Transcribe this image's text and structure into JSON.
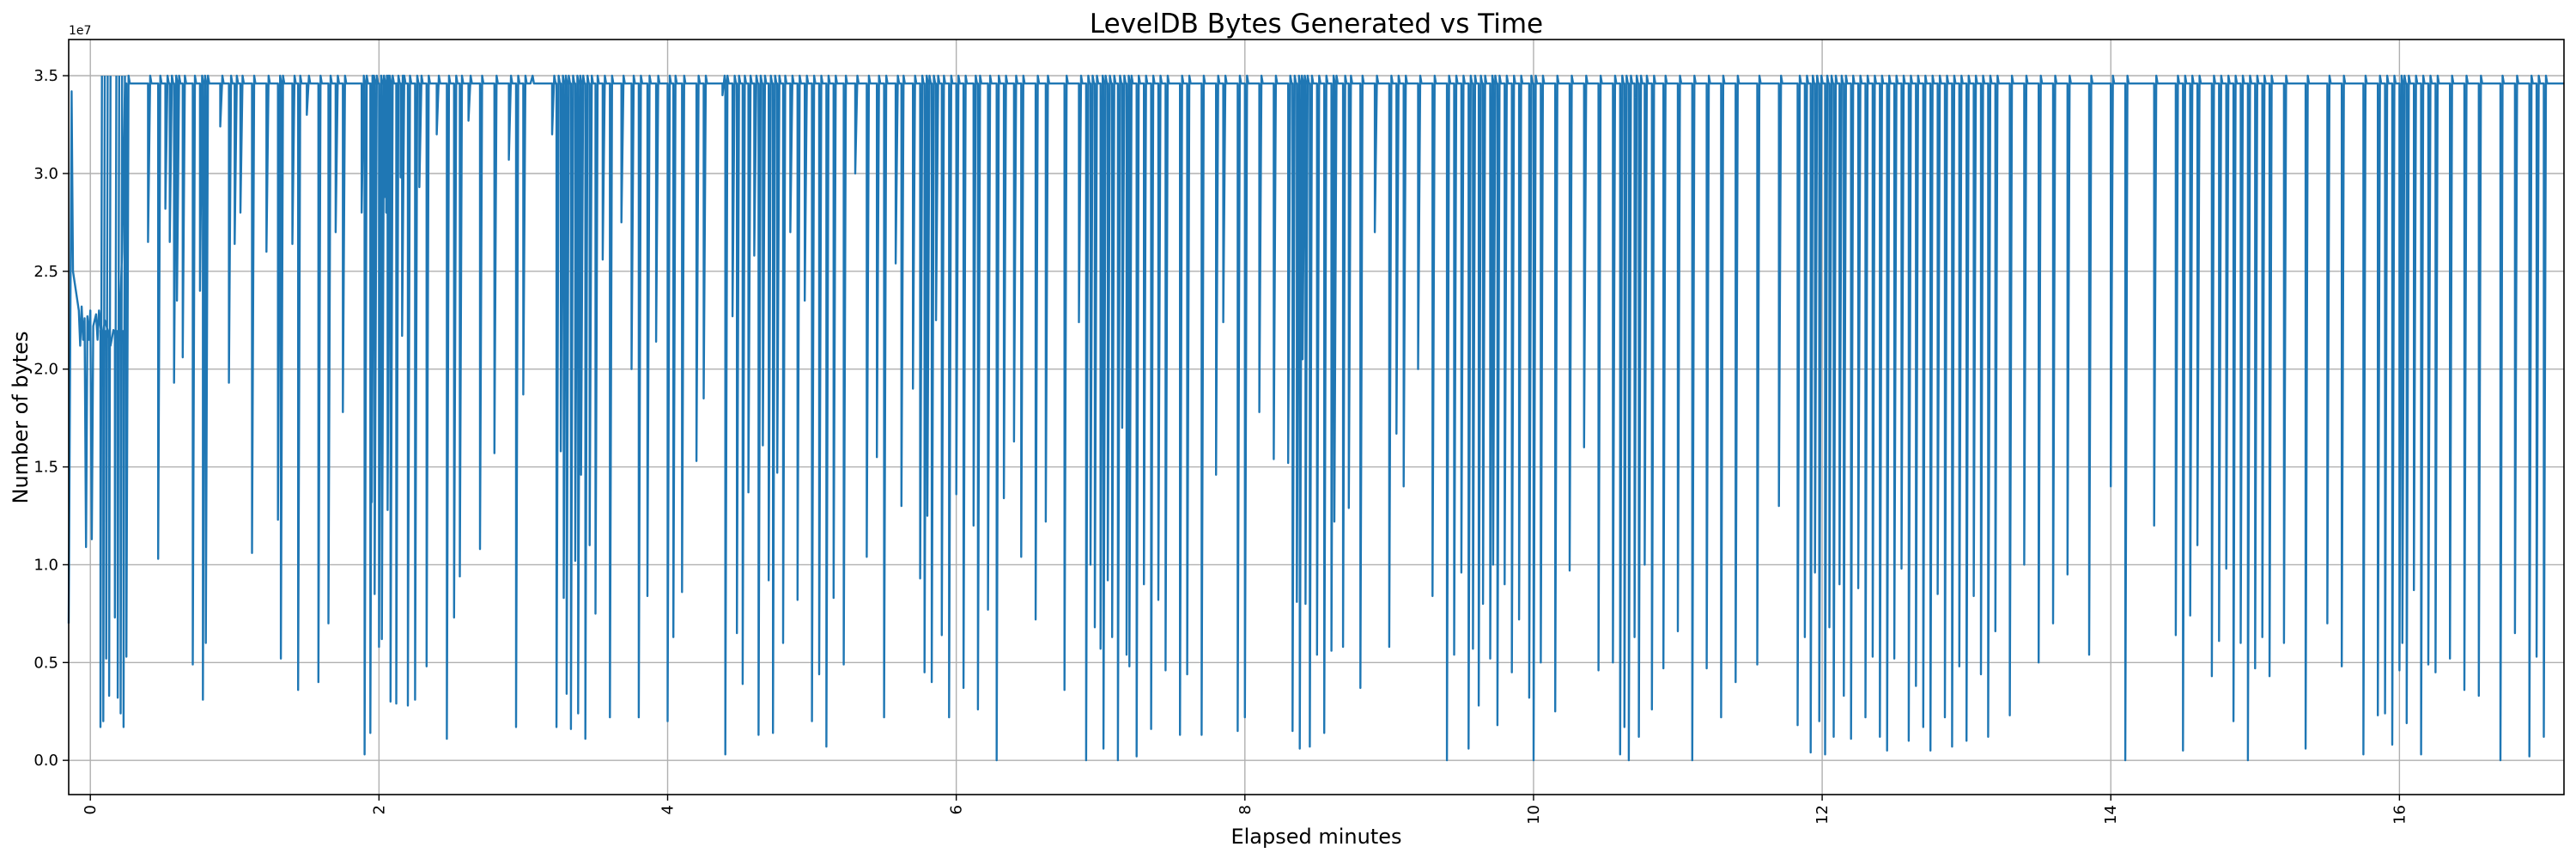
{
  "chart_data": {
    "type": "line",
    "title": "LevelDB Bytes Generated vs Time",
    "xlabel": "Elapsed minutes",
    "ylabel": "Number of bytes",
    "y_offset_label": "1e7",
    "xlim": [
      -0.15,
      17.14
    ],
    "ylim": [
      -0.175,
      3.685
    ],
    "y_units": "1e7 bytes",
    "grid": true,
    "color": "#1f77b4",
    "xticks": [
      0,
      2,
      4,
      6,
      8,
      10,
      12,
      14,
      16
    ],
    "xtick_labels": [
      "0",
      "2",
      "4",
      "6",
      "8",
      "10",
      "12",
      "14",
      "16"
    ],
    "yticks": [
      0,
      0.5,
      1.0,
      1.5,
      2.0,
      2.5,
      3.0,
      3.5
    ],
    "ytick_labels": [
      "0.0",
      "0.5",
      "1.0",
      "1.5",
      "2.0",
      "2.5",
      "3.0",
      "3.5"
    ],
    "baseline": 3.46,
    "initial_points": [
      [
        -0.15,
        0.7
      ],
      [
        -0.13,
        3.42
      ],
      [
        -0.12,
        2.5
      ],
      [
        -0.08,
        2.3
      ],
      [
        -0.07,
        2.12
      ],
      [
        -0.06,
        2.32
      ],
      [
        -0.05,
        2.15
      ],
      [
        -0.04,
        2.26
      ],
      [
        -0.03,
        1.09
      ],
      [
        -0.02,
        2.27
      ],
      [
        -0.01,
        2.15
      ],
      [
        0.0,
        2.3
      ],
      [
        0.01,
        1.13
      ],
      [
        0.02,
        2.22
      ],
      [
        0.04,
        2.28
      ],
      [
        0.05,
        2.15
      ],
      [
        0.06,
        2.3
      ],
      [
        0.08,
        2.14
      ],
      [
        0.1,
        2.25
      ],
      [
        0.12,
        2.2
      ],
      [
        0.14,
        2.12
      ],
      [
        0.16,
        2.2
      ],
      [
        0.2,
        2.15
      ],
      [
        0.22,
        2.6
      ],
      [
        0.24,
        3.46
      ]
    ],
    "dips": [
      [
        0.07,
        0.17
      ],
      [
        0.09,
        0.2
      ],
      [
        0.11,
        0.52
      ],
      [
        0.13,
        0.33
      ],
      [
        0.17,
        0.73
      ],
      [
        0.19,
        0.32
      ],
      [
        0.21,
        0.24
      ],
      [
        0.23,
        0.17
      ],
      [
        0.25,
        0.53
      ],
      [
        0.4,
        2.65
      ],
      [
        0.47,
        1.03
      ],
      [
        0.52,
        2.82
      ],
      [
        0.55,
        2.65
      ],
      [
        0.58,
        1.93
      ],
      [
        0.6,
        2.35
      ],
      [
        0.64,
        2.06
      ],
      [
        0.71,
        0.49
      ],
      [
        0.76,
        2.4
      ],
      [
        0.78,
        0.31
      ],
      [
        0.8,
        0.6
      ],
      [
        0.9,
        3.24
      ],
      [
        0.96,
        1.93
      ],
      [
        1.0,
        2.64
      ],
      [
        1.04,
        2.8
      ],
      [
        1.12,
        1.06
      ],
      [
        1.22,
        2.6
      ],
      [
        1.3,
        1.23
      ],
      [
        1.32,
        0.52
      ],
      [
        1.4,
        2.64
      ],
      [
        1.44,
        0.36
      ],
      [
        1.5,
        3.3
      ],
      [
        1.58,
        0.4
      ],
      [
        1.65,
        0.7
      ],
      [
        1.7,
        2.7
      ],
      [
        1.75,
        1.78
      ],
      [
        1.88,
        2.8
      ],
      [
        1.95,
        1.32
      ],
      [
        2.02,
        0.62
      ],
      [
        2.04,
        2.88
      ],
      [
        2.06,
        1.28
      ],
      [
        2.12,
        2.16
      ],
      [
        2.16,
        2.17
      ],
      [
        1.9,
        0.03
      ],
      [
        1.94,
        0.14
      ],
      [
        1.97,
        0.85
      ],
      [
        2.0,
        0.58
      ],
      [
        2.05,
        2.8
      ],
      [
        2.08,
        0.3
      ],
      [
        2.12,
        0.29
      ],
      [
        2.15,
        2.98
      ],
      [
        2.2,
        0.28
      ],
      [
        2.25,
        0.31
      ],
      [
        2.28,
        2.93
      ],
      [
        2.33,
        0.48
      ],
      [
        2.4,
        3.2
      ],
      [
        2.47,
        0.11
      ],
      [
        2.52,
        0.73
      ],
      [
        2.56,
        0.94
      ],
      [
        2.62,
        3.27
      ],
      [
        2.7,
        1.08
      ],
      [
        2.8,
        1.57
      ],
      [
        2.9,
        3.07
      ],
      [
        2.95,
        0.17
      ],
      [
        3.0,
        1.87
      ],
      [
        3.05,
        3.46
      ],
      [
        3.2,
        3.2
      ],
      [
        3.23,
        0.17
      ],
      [
        3.26,
        1.58
      ],
      [
        3.28,
        0.83
      ],
      [
        3.3,
        0.34
      ],
      [
        3.33,
        0.16
      ],
      [
        3.36,
        1.02
      ],
      [
        3.38,
        0.24
      ],
      [
        3.4,
        1.46
      ],
      [
        3.43,
        0.11
      ],
      [
        3.46,
        1.1
      ],
      [
        3.5,
        0.75
      ],
      [
        3.55,
        2.56
      ],
      [
        3.6,
        0.22
      ],
      [
        3.68,
        2.75
      ],
      [
        3.75,
        2.0
      ],
      [
        3.8,
        0.22
      ],
      [
        3.86,
        0.84
      ],
      [
        3.92,
        2.14
      ],
      [
        4.0,
        0.2
      ],
      [
        4.04,
        0.63
      ],
      [
        4.1,
        0.86
      ],
      [
        4.2,
        1.53
      ],
      [
        4.25,
        1.85
      ],
      [
        4.38,
        3.4
      ],
      [
        4.4,
        0.03
      ],
      [
        4.45,
        2.27
      ],
      [
        4.48,
        0.65
      ],
      [
        4.52,
        0.39
      ],
      [
        4.56,
        1.37
      ],
      [
        4.6,
        2.58
      ],
      [
        4.63,
        0.13
      ],
      [
        4.66,
        1.61
      ],
      [
        4.7,
        0.92
      ],
      [
        4.73,
        0.14
      ],
      [
        4.76,
        1.47
      ],
      [
        4.8,
        0.6
      ],
      [
        4.85,
        2.7
      ],
      [
        4.9,
        0.82
      ],
      [
        4.95,
        2.35
      ],
      [
        5.0,
        0.2
      ],
      [
        5.05,
        0.44
      ],
      [
        5.1,
        0.07
      ],
      [
        5.15,
        0.83
      ],
      [
        5.22,
        0.49
      ],
      [
        5.3,
        3.0
      ],
      [
        5.38,
        1.04
      ],
      [
        5.45,
        1.55
      ],
      [
        5.5,
        0.22
      ],
      [
        5.58,
        2.54
      ],
      [
        5.62,
        1.3
      ],
      [
        5.7,
        1.9
      ],
      [
        5.75,
        0.93
      ],
      [
        5.78,
        0.45
      ],
      [
        5.8,
        1.25
      ],
      [
        5.83,
        0.4
      ],
      [
        5.86,
        2.25
      ],
      [
        5.9,
        0.64
      ],
      [
        5.95,
        0.22
      ],
      [
        6.0,
        1.36
      ],
      [
        6.05,
        0.37
      ],
      [
        6.12,
        1.2
      ],
      [
        6.15,
        0.26
      ],
      [
        6.22,
        0.77
      ],
      [
        6.28,
        0.0
      ],
      [
        6.33,
        1.34
      ],
      [
        6.4,
        1.63
      ],
      [
        6.45,
        1.04
      ],
      [
        6.55,
        0.72
      ],
      [
        6.62,
        1.22
      ],
      [
        6.75,
        0.36
      ],
      [
        6.85,
        2.24
      ],
      [
        6.9,
        0.0
      ],
      [
        6.93,
        1.0
      ],
      [
        6.96,
        0.68
      ],
      [
        7.0,
        0.57
      ],
      [
        7.02,
        0.06
      ],
      [
        7.05,
        0.92
      ],
      [
        7.08,
        0.63
      ],
      [
        7.12,
        0.0
      ],
      [
        7.15,
        1.7
      ],
      [
        7.18,
        0.54
      ],
      [
        7.2,
        0.48
      ],
      [
        7.25,
        0.02
      ],
      [
        7.3,
        0.9
      ],
      [
        7.35,
        0.16
      ],
      [
        7.4,
        0.82
      ],
      [
        7.45,
        0.46
      ],
      [
        7.55,
        0.13
      ],
      [
        7.6,
        0.44
      ],
      [
        7.7,
        0.13
      ],
      [
        7.8,
        1.46
      ],
      [
        7.85,
        2.24
      ],
      [
        7.95,
        0.15
      ],
      [
        8.0,
        0.22
      ],
      [
        8.1,
        1.78
      ],
      [
        8.2,
        1.54
      ],
      [
        8.3,
        1.52
      ],
      [
        8.33,
        0.15
      ],
      [
        8.36,
        0.81
      ],
      [
        8.38,
        0.06
      ],
      [
        8.4,
        2.05
      ],
      [
        8.42,
        0.8
      ],
      [
        8.45,
        0.07
      ],
      [
        8.5,
        0.54
      ],
      [
        8.55,
        0.14
      ],
      [
        8.6,
        0.56
      ],
      [
        8.62,
        1.22
      ],
      [
        8.68,
        0.58
      ],
      [
        8.72,
        1.29
      ],
      [
        8.8,
        0.37
      ],
      [
        8.9,
        2.7
      ],
      [
        9.0,
        0.58
      ],
      [
        9.05,
        1.67
      ],
      [
        9.1,
        1.4
      ],
      [
        9.2,
        2.0
      ],
      [
        9.3,
        0.84
      ],
      [
        9.4,
        0.0
      ],
      [
        9.45,
        0.54
      ],
      [
        9.5,
        0.96
      ],
      [
        9.55,
        0.06
      ],
      [
        9.58,
        0.57
      ],
      [
        9.62,
        0.28
      ],
      [
        9.65,
        0.8
      ],
      [
        9.7,
        0.52
      ],
      [
        9.72,
        1.0
      ],
      [
        9.75,
        0.18
      ],
      [
        9.8,
        0.9
      ],
      [
        9.85,
        0.45
      ],
      [
        9.9,
        0.72
      ],
      [
        9.97,
        0.32
      ],
      [
        10.0,
        0.0
      ],
      [
        10.05,
        0.5
      ],
      [
        10.15,
        0.25
      ],
      [
        10.25,
        0.97
      ],
      [
        10.35,
        1.6
      ],
      [
        10.45,
        0.46
      ],
      [
        10.55,
        0.5
      ],
      [
        10.6,
        0.03
      ],
      [
        10.63,
        0.17
      ],
      [
        10.66,
        0.0
      ],
      [
        10.7,
        0.63
      ],
      [
        10.73,
        0.12
      ],
      [
        10.77,
        1.0
      ],
      [
        10.82,
        0.26
      ],
      [
        10.9,
        0.47
      ],
      [
        11.0,
        0.66
      ],
      [
        11.1,
        0.0
      ],
      [
        11.2,
        0.47
      ],
      [
        11.3,
        0.22
      ],
      [
        11.4,
        0.4
      ],
      [
        11.55,
        0.49
      ],
      [
        11.7,
        1.3
      ],
      [
        11.83,
        0.18
      ],
      [
        11.88,
        0.63
      ],
      [
        11.92,
        0.04
      ],
      [
        11.95,
        0.96
      ],
      [
        11.98,
        0.2
      ],
      [
        12.02,
        0.03
      ],
      [
        12.05,
        0.68
      ],
      [
        12.08,
        0.12
      ],
      [
        12.12,
        0.9
      ],
      [
        12.15,
        0.33
      ],
      [
        12.2,
        0.11
      ],
      [
        12.25,
        0.88
      ],
      [
        12.3,
        0.22
      ],
      [
        12.35,
        0.53
      ],
      [
        12.4,
        0.12
      ],
      [
        12.45,
        0.05
      ],
      [
        12.5,
        0.52
      ],
      [
        12.55,
        0.98
      ],
      [
        12.6,
        0.1
      ],
      [
        12.65,
        0.38
      ],
      [
        12.7,
        0.17
      ],
      [
        12.75,
        0.05
      ],
      [
        12.8,
        0.85
      ],
      [
        12.85,
        0.22
      ],
      [
        12.9,
        0.07
      ],
      [
        12.95,
        0.48
      ],
      [
        13.0,
        0.1
      ],
      [
        13.05,
        0.84
      ],
      [
        13.1,
        0.44
      ],
      [
        13.15,
        0.12
      ],
      [
        13.2,
        0.66
      ],
      [
        13.3,
        0.23
      ],
      [
        13.4,
        1.0
      ],
      [
        13.5,
        0.5
      ],
      [
        13.6,
        0.7
      ],
      [
        13.7,
        0.95
      ],
      [
        13.85,
        0.54
      ],
      [
        14.0,
        1.4
      ],
      [
        14.1,
        0.0
      ],
      [
        14.3,
        1.2
      ],
      [
        14.45,
        0.64
      ],
      [
        14.5,
        0.05
      ],
      [
        14.55,
        0.74
      ],
      [
        14.6,
        1.1
      ],
      [
        14.7,
        0.43
      ],
      [
        14.75,
        0.61
      ],
      [
        14.8,
        0.98
      ],
      [
        14.85,
        0.2
      ],
      [
        14.9,
        0.6
      ],
      [
        14.95,
        0.0
      ],
      [
        15.0,
        0.47
      ],
      [
        15.05,
        0.63
      ],
      [
        15.1,
        0.43
      ],
      [
        15.2,
        0.6
      ],
      [
        15.35,
        0.06
      ],
      [
        15.5,
        0.7
      ],
      [
        15.6,
        0.48
      ],
      [
        15.75,
        0.03
      ],
      [
        15.85,
        0.23
      ],
      [
        15.9,
        0.24
      ],
      [
        15.95,
        0.08
      ],
      [
        16.0,
        0.46
      ],
      [
        16.02,
        0.6
      ],
      [
        16.05,
        0.19
      ],
      [
        16.1,
        0.87
      ],
      [
        16.15,
        0.03
      ],
      [
        16.2,
        0.49
      ],
      [
        16.25,
        0.45
      ],
      [
        16.35,
        0.52
      ],
      [
        16.45,
        0.36
      ],
      [
        16.55,
        0.33
      ],
      [
        16.7,
        0.0
      ],
      [
        16.8,
        0.65
      ],
      [
        16.9,
        0.02
      ],
      [
        16.95,
        0.53
      ],
      [
        17.0,
        0.12
      ]
    ]
  }
}
